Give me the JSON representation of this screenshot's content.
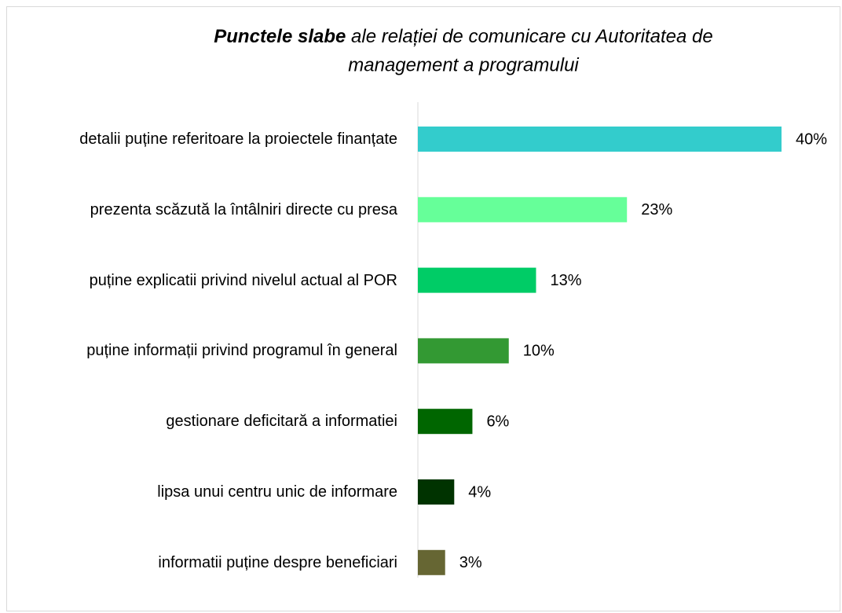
{
  "chart_data": {
    "type": "bar",
    "orientation": "horizontal",
    "title": {
      "bold": "Punctele slabe",
      "line1": "ale relației de comunicare cu Autoritatea de",
      "line2": "management a programului"
    },
    "categories": [
      "detalii puține referitoare la proiectele finanțate",
      "prezenta scăzută la întâlniri directe cu presa",
      "puține explicatii privind nivelul actual al POR",
      "puține informații privind programul în general",
      "gestionare deficitară a informatiei",
      "lipsa unui centru unic de informare",
      "informatii puține despre beneficiari"
    ],
    "values": [
      40,
      23,
      13,
      10,
      6,
      4,
      3
    ],
    "value_labels": [
      "40%",
      "23%",
      "13%",
      "10%",
      "6%",
      "4%",
      "3%"
    ],
    "colors": [
      "#33CCCC",
      "#66FF99",
      "#00CC66",
      "#339933",
      "#006600",
      "#003300",
      "#666633"
    ],
    "xlim": [
      0,
      40
    ]
  }
}
